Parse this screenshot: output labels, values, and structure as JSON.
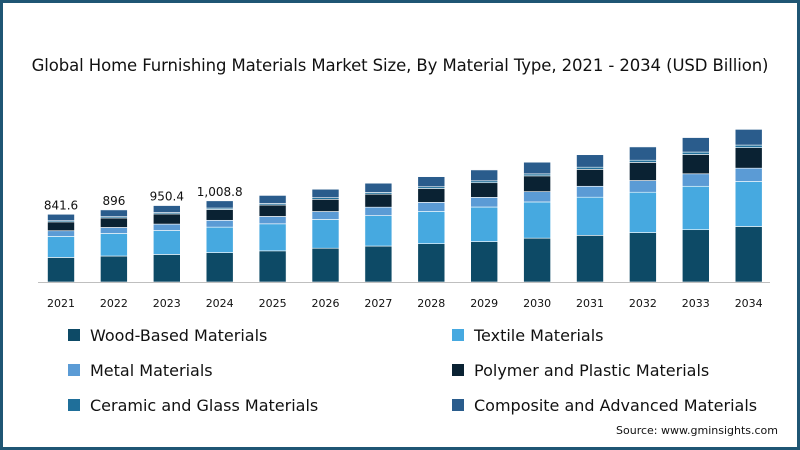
{
  "chart_data": {
    "type": "bar",
    "stacked": true,
    "title": "Global Home Furnishing Materials Market Size, By Material Type, 2021 - 2034 (USD Billion)",
    "xlabel": "",
    "ylabel": "",
    "ylim": [
      0,
      2200
    ],
    "categories": [
      "2021",
      "2022",
      "2023",
      "2024",
      "2025",
      "2026",
      "2027",
      "2028",
      "2029",
      "2030",
      "2031",
      "2032",
      "2033",
      "2034"
    ],
    "data_labels": [
      "841.6",
      "896",
      "950.4",
      "1,008.8",
      "",
      "",
      "",
      "",
      "",
      "",
      "",
      "",
      "",
      ""
    ],
    "series": [
      {
        "name": "Wood-Based Materials",
        "color": "#0d4a66",
        "values": [
          305,
          323,
          342,
          365,
          387,
          420,
          447,
          476,
          502,
          545,
          580,
          614,
          650,
          690
        ]
      },
      {
        "name": "Textile Materials",
        "color": "#46a9e0",
        "values": [
          262,
          280,
          298,
          317,
          336,
          358,
          378,
          402,
          430,
          450,
          474,
          502,
          540,
          560
        ]
      },
      {
        "name": "Metal Materials",
        "color": "#5b9bd5",
        "values": [
          70,
          75,
          80,
          85,
          92,
          98,
          105,
          112,
          120,
          128,
          136,
          145,
          155,
          165
        ]
      },
      {
        "name": "Polymer and Plastic Materials",
        "color": "#0a2233",
        "values": [
          110,
          118,
          126,
          134,
          142,
          152,
          162,
          172,
          182,
          196,
          210,
          225,
          240,
          255
        ]
      },
      {
        "name": "Ceramic and Glass Materials",
        "color": "#1f6f9a",
        "values": [
          15,
          16,
          17,
          18,
          19,
          20,
          21,
          22,
          24,
          25,
          27,
          28,
          30,
          32
        ]
      },
      {
        "name": "Composite and Advanced Materials",
        "color": "#2a5c8c",
        "values": [
          80,
          84,
          87,
          90,
          100,
          105,
          115,
          125,
          135,
          145,
          155,
          165,
          180,
          195
        ]
      }
    ],
    "legend_position": "bottom",
    "grid": false
  },
  "source": "Source: www.gminsights.com"
}
